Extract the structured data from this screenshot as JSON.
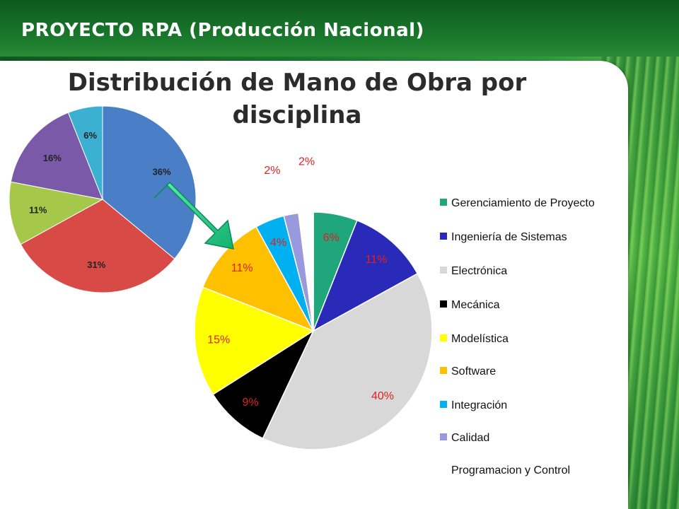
{
  "header": {
    "title": "PROYECTO RPA (Producción Nacional)"
  },
  "slide": {
    "title_line1": "Distribución de Mano de Obra por",
    "title_line2": "disciplina"
  },
  "small_pie": {
    "type": "pie",
    "slices": [
      {
        "label": "36%",
        "value": 36,
        "color": "#4a7fc8"
      },
      {
        "label": "31%",
        "value": 31,
        "color": "#d84a45"
      },
      {
        "label": "11%",
        "value": 11,
        "color": "#a6c84a"
      },
      {
        "label": "16%",
        "value": 16,
        "color": "#7a5aa8"
      },
      {
        "label": "6%",
        "value": 6,
        "color": "#3bb0d0"
      }
    ]
  },
  "chart_data": {
    "type": "pie",
    "categories": [
      "Gerenciamiento de Proyecto",
      "Ingeniería de Sistemas",
      "Electrónica",
      "Mecánica",
      "Modelística",
      "Software",
      "Integración",
      "Calidad",
      "Programacion y Control"
    ],
    "values": [
      6,
      11,
      40,
      9,
      15,
      11,
      4,
      2,
      2
    ],
    "labels": [
      "6%",
      "11%",
      "40%",
      "9%",
      "15%",
      "11%",
      "4%",
      "2%",
      "2%"
    ],
    "colors": [
      "#1fa67a",
      "#2a2ab8",
      "#d8d8d8",
      "#000000",
      "#ffff00",
      "#ffc000",
      "#00b0f0",
      "#9999dd",
      "#ffffff"
    ],
    "label_color": "#e02020",
    "legend_position": "right"
  }
}
